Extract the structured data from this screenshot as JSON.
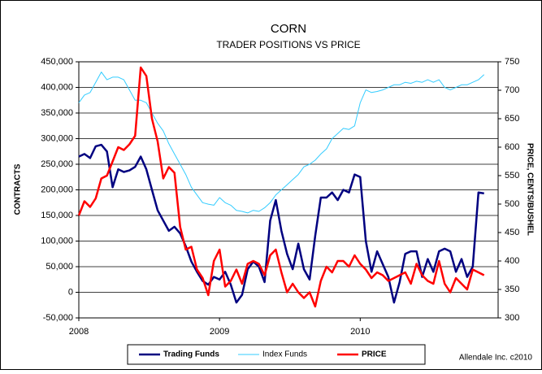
{
  "chart_data": {
    "type": "line",
    "title": "CORN",
    "subtitle": "TRADER POSITIONS VS PRICE",
    "ylabel": "CONTRACTS",
    "y2label": "PRICE, CENTS/BUSHEL",
    "annotation": "Allendale Inc. c2010",
    "legend": "bottom",
    "grid": true,
    "xlim": [
      2008,
      2010.98
    ],
    "xticks": [
      2008,
      2009,
      2010
    ],
    "ylim": [
      -50000,
      450000
    ],
    "yticks": [
      {
        "value": -50000,
        "label": "-50,000"
      },
      0,
      {
        "value": 50000,
        "label": "50,000"
      },
      {
        "value": 100000,
        "label": "100,000"
      },
      {
        "value": 150000,
        "label": "150,000"
      },
      {
        "value": 200000,
        "label": "200,000"
      },
      {
        "value": 250000,
        "label": "250,000"
      },
      {
        "value": 300000,
        "label": "300,000"
      },
      {
        "value": 350000,
        "label": "350,000"
      },
      {
        "value": 400000,
        "label": "400,000"
      },
      {
        "value": 450000,
        "label": "450,000"
      }
    ],
    "y2lim": [
      300,
      750
    ],
    "y2ticks": [
      300,
      350,
      400,
      450,
      500,
      550,
      600,
      650,
      700,
      750
    ],
    "x": [
      2008.0,
      2008.04,
      2008.08,
      2008.12,
      2008.16,
      2008.2,
      2008.24,
      2008.28,
      2008.32,
      2008.36,
      2008.4,
      2008.44,
      2008.48,
      2008.52,
      2008.56,
      2008.6,
      2008.64,
      2008.68,
      2008.72,
      2008.76,
      2008.8,
      2008.84,
      2008.88,
      2008.92,
      2008.96,
      2009.0,
      2009.04,
      2009.08,
      2009.12,
      2009.16,
      2009.2,
      2009.24,
      2009.28,
      2009.32,
      2009.36,
      2009.4,
      2009.44,
      2009.48,
      2009.52,
      2009.56,
      2009.6,
      2009.64,
      2009.68,
      2009.72,
      2009.76,
      2009.8,
      2009.84,
      2009.88,
      2009.92,
      2009.96,
      2010.0,
      2010.04,
      2010.08,
      2010.12,
      2010.16,
      2010.2,
      2010.24,
      2010.28,
      2010.32,
      2010.36,
      2010.4,
      2010.44,
      2010.48,
      2010.52,
      2010.56,
      2010.6,
      2010.64,
      2010.68,
      2010.72,
      2010.76,
      2010.8,
      2010.84,
      2010.88
    ],
    "series": [
      {
        "name": "Trading Funds",
        "color": "#000080",
        "axis": "y",
        "width": 2.5,
        "bold": true,
        "values": [
          265000,
          270000,
          262000,
          285000,
          288000,
          275000,
          205000,
          240000,
          235000,
          238000,
          245000,
          265000,
          240000,
          200000,
          160000,
          140000,
          120000,
          128000,
          115000,
          90000,
          60000,
          40000,
          22000,
          15000,
          30000,
          25000,
          40000,
          15000,
          -20000,
          -5000,
          45000,
          60000,
          50000,
          20000,
          140000,
          180000,
          120000,
          75000,
          45000,
          95000,
          45000,
          25000,
          110000,
          185000,
          185000,
          195000,
          180000,
          200000,
          195000,
          230000,
          225000,
          100000,
          40000,
          80000,
          55000,
          30000,
          -20000,
          20000,
          75000,
          80000,
          80000,
          30000,
          65000,
          40000,
          80000,
          85000,
          80000,
          40000,
          65000,
          30000,
          50000,
          195000,
          193000
        ]
      },
      {
        "name": "Index Funds",
        "color": "#33ccff",
        "axis": "y",
        "width": 1,
        "bold": true,
        "values": [
          370000,
          385000,
          390000,
          410000,
          430000,
          415000,
          420000,
          420000,
          415000,
          395000,
          375000,
          375000,
          370000,
          350000,
          330000,
          315000,
          290000,
          270000,
          250000,
          230000,
          205000,
          190000,
          175000,
          172000,
          170000,
          185000,
          175000,
          170000,
          160000,
          158000,
          155000,
          160000,
          158000,
          165000,
          175000,
          190000,
          200000,
          210000,
          220000,
          230000,
          245000,
          250000,
          258000,
          270000,
          280000,
          300000,
          310000,
          320000,
          318000,
          325000,
          370000,
          395000,
          390000,
          392000,
          395000,
          400000,
          405000,
          405000,
          410000,
          408000,
          412000,
          410000,
          415000,
          410000,
          415000,
          400000,
          395000,
          400000,
          405000,
          405000,
          410000,
          415000,
          425000
        ]
      },
      {
        "name": "PRICE",
        "color": "#ff0000",
        "axis": "y2",
        "width": 2.5,
        "bold": true,
        "values": [
          480,
          505,
          495,
          510,
          545,
          550,
          575,
          600,
          595,
          605,
          620,
          740,
          725,
          650,
          610,
          545,
          565,
          555,
          460,
          420,
          425,
          385,
          370,
          340,
          400,
          420,
          355,
          365,
          385,
          360,
          395,
          400,
          395,
          375,
          410,
          420,
          380,
          345,
          360,
          345,
          335,
          345,
          320,
          365,
          390,
          380,
          400,
          400,
          390,
          410,
          395,
          385,
          370,
          380,
          375,
          365,
          370,
          375,
          380,
          360,
          395,
          375,
          365,
          360,
          400,
          360,
          345,
          370,
          360,
          350,
          385,
          380,
          375
        ]
      }
    ]
  }
}
